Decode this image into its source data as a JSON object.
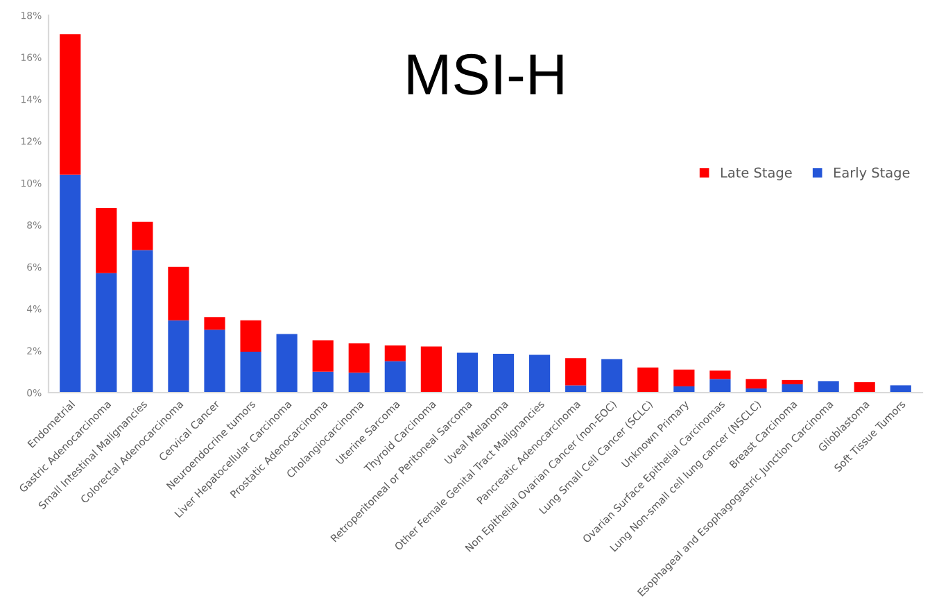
{
  "chart_data": {
    "type": "bar",
    "title": "MSI-H",
    "stacked": true,
    "legend": "right",
    "grid": false,
    "categories": [
      "Endometrial",
      "Gastric Adenocarcinoma",
      "Small Intestinal Malignancies",
      "Colorectal Adenocarcinoma",
      "Cervical Cancer",
      "Neuroendocrine tumors",
      "Liver Hepatocellular Carcinoma",
      "Prostatic Adenocarcinoma",
      "Cholangiocarcinoma",
      "Uterine Sarcoma",
      "Thyroid Carcinoma",
      "Retroperitoneal or Peritoneal Sarcoma",
      "Uveal Melanoma",
      "Other Female Genital Tract Malignancies",
      "Pancreatic Adenocarcinoma",
      "Non Epithelial Ovarian Cancer (non-EOC)",
      "Lung Small Cell Cancer (SCLC)",
      "Unknown Primary",
      "Ovarian Surface Epithelial Carcinomas",
      "Lung Non-small cell lung cancer (NSCLC)",
      "Breast Carcinoma",
      "Esophageal and Esophagogastric Junction Carcinoma",
      "Glioblastoma",
      "Soft Tissue Tumors"
    ],
    "series": [
      {
        "name": "Early Stage",
        "color": "#2456d8",
        "values": [
          10.4,
          5.7,
          6.8,
          3.45,
          3.0,
          1.95,
          2.8,
          1.0,
          0.95,
          1.5,
          0,
          1.9,
          1.85,
          1.8,
          0.35,
          1.6,
          0,
          0.3,
          0.65,
          0.2,
          0.4,
          0.55,
          0,
          0.35
        ]
      },
      {
        "name": "Late Stage",
        "color": "#ff0000",
        "values": [
          6.7,
          3.1,
          1.35,
          2.55,
          0.6,
          1.5,
          0,
          1.5,
          1.4,
          0.75,
          2.2,
          0,
          0,
          0,
          1.3,
          0,
          1.2,
          0.8,
          0.4,
          0.45,
          0.2,
          0,
          0.5,
          0
        ]
      }
    ],
    "ylim": [
      0,
      18
    ],
    "yticks": [
      {
        "value": 0,
        "label": "0%"
      },
      {
        "value": 2,
        "label": "2%"
      },
      {
        "value": 4,
        "label": "4%"
      },
      {
        "value": 6,
        "label": "6%"
      },
      {
        "value": 8,
        "label": "8%"
      },
      {
        "value": 10,
        "label": "10%"
      },
      {
        "value": 12,
        "label": "12%"
      },
      {
        "value": 14,
        "label": "14%"
      },
      {
        "value": 16,
        "label": "16%"
      },
      {
        "value": 18,
        "label": "18%"
      }
    ]
  }
}
